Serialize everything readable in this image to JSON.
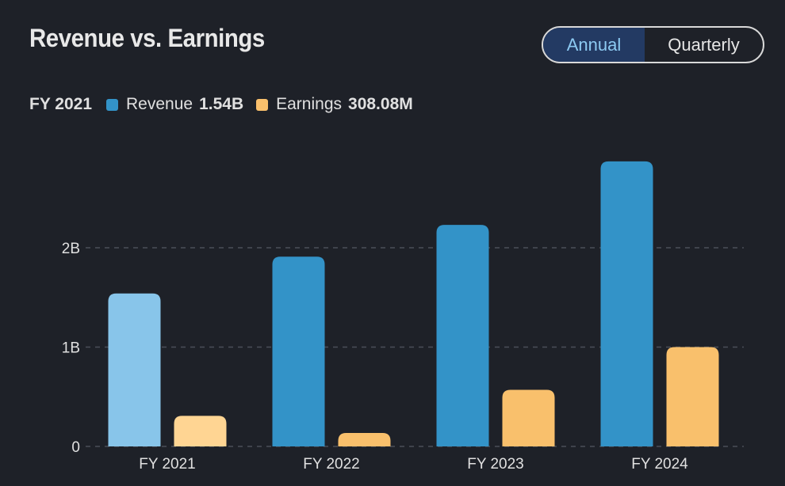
{
  "header": {
    "title": "Revenue vs. Earnings",
    "toggle": {
      "options": [
        "Annual",
        "Quarterly"
      ],
      "selected": "Annual"
    }
  },
  "legend": {
    "period": "FY 2021",
    "items": [
      {
        "label": "Revenue",
        "value": "1.54B",
        "color": "#3393c8"
      },
      {
        "label": "Earnings",
        "value": "308.08M",
        "color": "#f9c06c"
      }
    ]
  },
  "colors": {
    "revenue": "#3393c8",
    "earnings": "#f9c06c",
    "revenue_highlight": "#88c5ea",
    "earnings_highlight": "#ffd593",
    "grid": "#4a4f58"
  },
  "chart_data": {
    "type": "bar",
    "title": "Revenue vs. Earnings",
    "xlabel": "",
    "ylabel": "",
    "categories": [
      "FY 2021",
      "FY 2022",
      "FY 2023",
      "FY 2024"
    ],
    "series": [
      {
        "name": "Revenue",
        "unit": "B",
        "values": [
          1.54,
          1.91,
          2.23,
          2.87
        ]
      },
      {
        "name": "Earnings",
        "unit": "B",
        "values": [
          0.30808,
          0.135,
          0.57,
          1.0
        ]
      }
    ],
    "highlighted_category": "FY 2021",
    "ylim": [
      0,
      3
    ],
    "yticks": [
      {
        "value": 0,
        "label": "0"
      },
      {
        "value": 1,
        "label": "1B"
      },
      {
        "value": 2,
        "label": "2B"
      }
    ],
    "grid": true,
    "legend_position": "top-left"
  }
}
